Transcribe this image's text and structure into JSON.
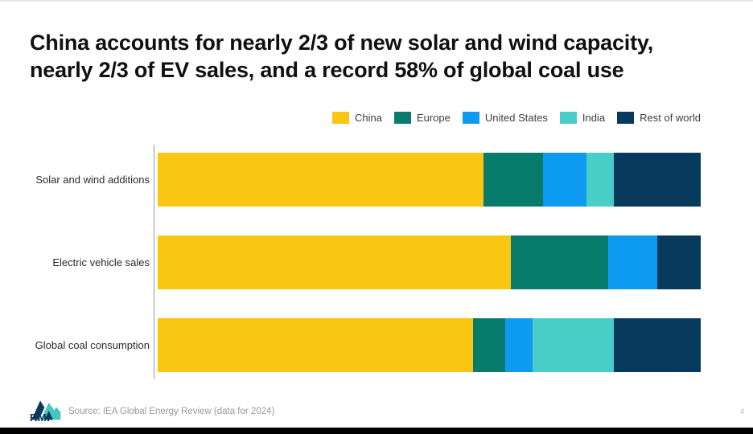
{
  "title": {
    "line1": "China accounts for nearly 2/3 of new solar and wind capacity,",
    "line2": "nearly 2/3 of EV sales, and a record 58% of global coal use"
  },
  "chart_data": {
    "type": "bar",
    "orientation": "horizontal",
    "stacked": true,
    "title": "China accounts for nearly 2/3 of new solar and wind capacity, nearly 2/3 of EV sales, and a record 58% of global coal use",
    "categories": [
      "Solar and wind additions",
      "Electric vehicle sales",
      "Global coal consumption"
    ],
    "series": [
      {
        "name": "China",
        "color": "#FBC513",
        "values": [
          60,
          65,
          58
        ]
      },
      {
        "name": "Europe",
        "color": "#077C6C",
        "values": [
          11,
          18,
          6
        ]
      },
      {
        "name": "United States",
        "color": "#0D9BF2",
        "values": [
          8,
          9,
          5
        ]
      },
      {
        "name": "India",
        "color": "#49CEC7",
        "values": [
          5,
          0,
          15
        ]
      },
      {
        "name": "Rest of world",
        "color": "#073A5D",
        "values": [
          16,
          8,
          16
        ]
      }
    ],
    "unit": "% share of global total",
    "xlim": [
      0,
      100
    ],
    "xlabel": "",
    "ylabel": "",
    "grid": false,
    "legend_position": "top-right"
  },
  "footer": {
    "logo_text": "RMI",
    "source": "Source: IEA Global Energy Review (data for 2024)",
    "page_number": "4"
  },
  "colors": {
    "china": "#FBC513",
    "europe": "#077C6C",
    "united_states": "#0D9BF2",
    "india": "#49CEC7",
    "rest_of_world": "#073A5D",
    "logo_navy": "#0d3a5c",
    "logo_teal": "#45c6c0",
    "bottom_bar": "#000000"
  }
}
